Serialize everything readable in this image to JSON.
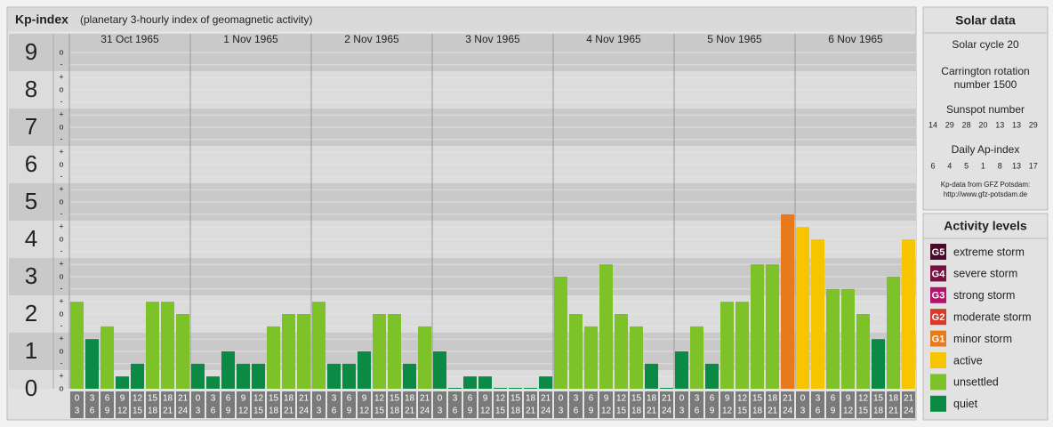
{
  "chart_data": {
    "type": "bar",
    "title": "Kp-index",
    "subtitle": "(planetary 3-hourly index of geomagnetic activity)",
    "days": [
      "31 Oct 1965",
      "1 Nov 1965",
      "2 Nov 1965",
      "3 Nov 1965",
      "4 Nov 1965",
      "5 Nov 1965",
      "6 Nov 1965"
    ],
    "intervals": [
      {
        "start": "0",
        "end": "3"
      },
      {
        "start": "3",
        "end": "6"
      },
      {
        "start": "6",
        "end": "9"
      },
      {
        "start": "9",
        "end": "12"
      },
      {
        "start": "12",
        "end": "15"
      },
      {
        "start": "15",
        "end": "18"
      },
      {
        "start": "18",
        "end": "21"
      },
      {
        "start": "21",
        "end": "24"
      }
    ],
    "values": [
      2.33,
      1.33,
      1.67,
      0.33,
      0.67,
      2.33,
      2.33,
      2,
      0.67,
      0.33,
      1,
      0.67,
      0.67,
      1.67,
      2,
      2,
      2.33,
      0.67,
      0.67,
      1,
      2,
      2,
      0.67,
      1.67,
      1,
      0,
      0.33,
      0.33,
      0,
      0,
      0,
      0.33,
      3,
      2,
      1.67,
      3.33,
      2,
      1.67,
      0.67,
      0,
      1,
      1.67,
      0.67,
      2.33,
      2.33,
      3.33,
      3.33,
      4.67,
      4.33,
      4,
      2.67,
      2.67,
      2,
      1.33,
      3,
      4
    ],
    "colors": [
      "#7cc228",
      "#0b8a45",
      "#7cc228",
      "#0b8a45",
      "#0b8a45",
      "#7cc228",
      "#7cc228",
      "#7cc228",
      "#0b8a45",
      "#0b8a45",
      "#0b8a45",
      "#0b8a45",
      "#0b8a45",
      "#7cc228",
      "#7cc228",
      "#7cc228",
      "#7cc228",
      "#0b8a45",
      "#0b8a45",
      "#0b8a45",
      "#7cc228",
      "#7cc228",
      "#0b8a45",
      "#7cc228",
      "#0b8a45",
      "#0b8a45",
      "#0b8a45",
      "#0b8a45",
      "#0b8a45",
      "#0b8a45",
      "#0b8a45",
      "#0b8a45",
      "#7cc228",
      "#7cc228",
      "#7cc228",
      "#7cc228",
      "#7cc228",
      "#7cc228",
      "#0b8a45",
      "#0b8a45",
      "#0b8a45",
      "#7cc228",
      "#0b8a45",
      "#7cc228",
      "#7cc228",
      "#7cc228",
      "#7cc228",
      "#e87a1e",
      "#f7c400",
      "#f7c400",
      "#7cc228",
      "#7cc228",
      "#7cc228",
      "#0b8a45",
      "#7cc228",
      "#f7c400"
    ],
    "ylim": [
      0,
      9.5
    ],
    "yticks": [
      0,
      1,
      2,
      3,
      4,
      5,
      6,
      7,
      8,
      9
    ],
    "yticks_minor": [
      {
        "value": 0,
        "label": "o"
      },
      {
        "value": 0.33,
        "label": "+"
      },
      {
        "value": 0.67,
        "label": "-"
      },
      {
        "value": 1,
        "label": "o"
      },
      {
        "value": 1.33,
        "label": "+"
      },
      {
        "value": 1.67,
        "label": "-"
      },
      {
        "value": 2,
        "label": "o"
      },
      {
        "value": 2.33,
        "label": "+"
      },
      {
        "value": 2.67,
        "label": "-"
      },
      {
        "value": 3,
        "label": "o"
      },
      {
        "value": 3.33,
        "label": "+"
      },
      {
        "value": 3.67,
        "label": "-"
      },
      {
        "value": 4,
        "label": "o"
      },
      {
        "value": 4.33,
        "label": "+"
      },
      {
        "value": 4.67,
        "label": "-"
      },
      {
        "value": 5,
        "label": "o"
      },
      {
        "value": 5.33,
        "label": "+"
      },
      {
        "value": 5.67,
        "label": "-"
      },
      {
        "value": 6,
        "label": "o"
      },
      {
        "value": 6.33,
        "label": "+"
      },
      {
        "value": 6.67,
        "label": "-"
      },
      {
        "value": 7,
        "label": "o"
      },
      {
        "value": 7.33,
        "label": "+"
      },
      {
        "value": 7.67,
        "label": "-"
      },
      {
        "value": 8,
        "label": "o"
      },
      {
        "value": 8.33,
        "label": "+"
      },
      {
        "value": 8.67,
        "label": "-"
      },
      {
        "value": 9,
        "label": "o"
      }
    ],
    "grid": true
  },
  "solar_data": {
    "title": "Solar data",
    "solar_cycle": "Solar cycle 20",
    "carrington": [
      "Carrington rotation",
      "number 1500"
    ],
    "sunspot_title": "Sunspot number",
    "sunspot": [
      14,
      29,
      28,
      20,
      13,
      13,
      29
    ],
    "ap_title": "Daily Ap-index",
    "ap": [
      6,
      4,
      5,
      1,
      8,
      13,
      17
    ],
    "source": [
      "Kp-data from GFZ Potsdam:",
      "http://www.gfz-potsdam.de"
    ]
  },
  "activity_levels": {
    "title": "Activity levels",
    "items": [
      {
        "badge": "G5",
        "label": "extreme storm",
        "color": "#4a0a2a"
      },
      {
        "badge": "G4",
        "label": "severe storm",
        "color": "#7a1042"
      },
      {
        "badge": "G3",
        "label": "strong storm",
        "color": "#b5136b"
      },
      {
        "badge": "G2",
        "label": "moderate storm",
        "color": "#d33b2a"
      },
      {
        "badge": "G1",
        "label": "minor storm",
        "color": "#e87a1e"
      },
      {
        "label": "active",
        "color": "#f7c400"
      },
      {
        "label": "unsettled",
        "color": "#7cc228"
      },
      {
        "label": "quiet",
        "color": "#0b8a45"
      }
    ]
  }
}
